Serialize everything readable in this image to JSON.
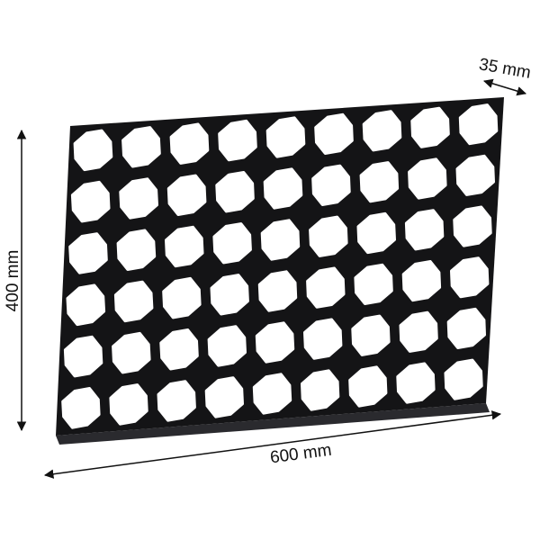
{
  "product": {
    "description_visible": "",
    "color": "#141416",
    "cell_columns": 9,
    "cell_rows": 6
  },
  "dimensions": {
    "height_label": "400 mm",
    "width_label": "600 mm",
    "depth_label": "35 mm"
  }
}
